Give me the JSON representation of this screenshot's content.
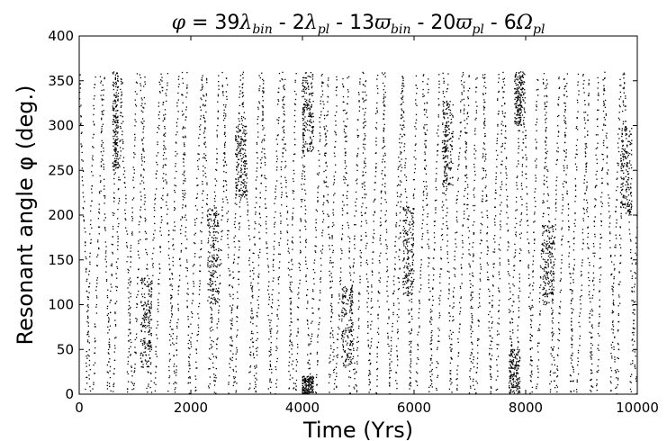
{
  "chart_data": {
    "type": "scatter",
    "title": "φ = 39λbin - 2λpl - 13ϖbin - 20ϖpl - 6Ωpl",
    "title_parts": {
      "phi": "φ",
      "eq": " = 39",
      "lambda1": "λ",
      "bin1": "bin",
      "minus2": " - 2",
      "lambda2": "λ",
      "pl1": "pl",
      "minus13": " - 13",
      "varpi1": "ϖ",
      "bin2": "bin",
      "minus20": " - 20",
      "varpi2": "ϖ",
      "pl2": "pl",
      "minus6": " - 6",
      "omega": "Ω",
      "pl3": "pl"
    },
    "xlabel": "Time (Yrs)",
    "ylabel": "Resonant angle φ (deg.)",
    "xlim": [
      0,
      10000
    ],
    "ylim": [
      0,
      400
    ],
    "xticks": [
      "0",
      "2000",
      "4000",
      "6000",
      "8000",
      "10000"
    ],
    "yticks": [
      "0",
      "50",
      "100",
      "150",
      "200",
      "250",
      "300",
      "350",
      "400"
    ],
    "grid": false,
    "marker_color": "#000000",
    "dense_clusters": [
      {
        "t": [
          600,
          700
        ],
        "phi": [
          250,
          360
        ]
      },
      {
        "t": [
          1100,
          1300
        ],
        "phi": [
          30,
          130
        ]
      },
      {
        "t": [
          2300,
          2500
        ],
        "phi": [
          100,
          210
        ]
      },
      {
        "t": [
          2800,
          3000
        ],
        "phi": [
          220,
          300
        ]
      },
      {
        "t": [
          4000,
          4200
        ],
        "phi": [
          270,
          360
        ]
      },
      {
        "t": [
          4000,
          4200
        ],
        "phi": [
          0,
          20
        ]
      },
      {
        "t": [
          4700,
          4900
        ],
        "phi": [
          30,
          120
        ]
      },
      {
        "t": [
          5800,
          6000
        ],
        "phi": [
          110,
          210
        ]
      },
      {
        "t": [
          6500,
          6700
        ],
        "phi": [
          230,
          330
        ]
      },
      {
        "t": [
          7700,
          7900
        ],
        "phi": [
          0,
          50
        ]
      },
      {
        "t": [
          7800,
          7950
        ],
        "phi": [
          300,
          360
        ]
      },
      {
        "t": [
          8300,
          8500
        ],
        "phi": [
          100,
          190
        ]
      },
      {
        "t": [
          9700,
          9900
        ],
        "phi": [
          200,
          300
        ]
      }
    ],
    "series": [
      {
        "x": [
          0,
          120,
          250,
          380,
          500,
          620,
          740,
          860,
          980,
          1100,
          1220,
          1350,
          1480,
          1600,
          1720,
          1840,
          1960,
          2080,
          2200,
          2320,
          2440,
          2560,
          2680,
          2800,
          2920,
          3040,
          3160,
          3280,
          3400,
          3520,
          3640,
          3760,
          3880,
          4000,
          4120,
          4240,
          4360,
          4480,
          4600,
          4720,
          4840,
          4960,
          5080,
          5200,
          5320,
          5440,
          5560,
          5680,
          5800,
          5920,
          6040,
          6160,
          6280,
          6400,
          6520,
          6640,
          6760,
          6880,
          7000,
          7120,
          7240,
          7360,
          7480,
          7600,
          7720,
          7840,
          7960,
          8080,
          8200,
          8320,
          8440,
          8560,
          8680,
          8800,
          8920,
          9040,
          9160,
          9280,
          9400,
          9520,
          9640,
          9760,
          9880,
          10000
        ]
      }
    ]
  }
}
